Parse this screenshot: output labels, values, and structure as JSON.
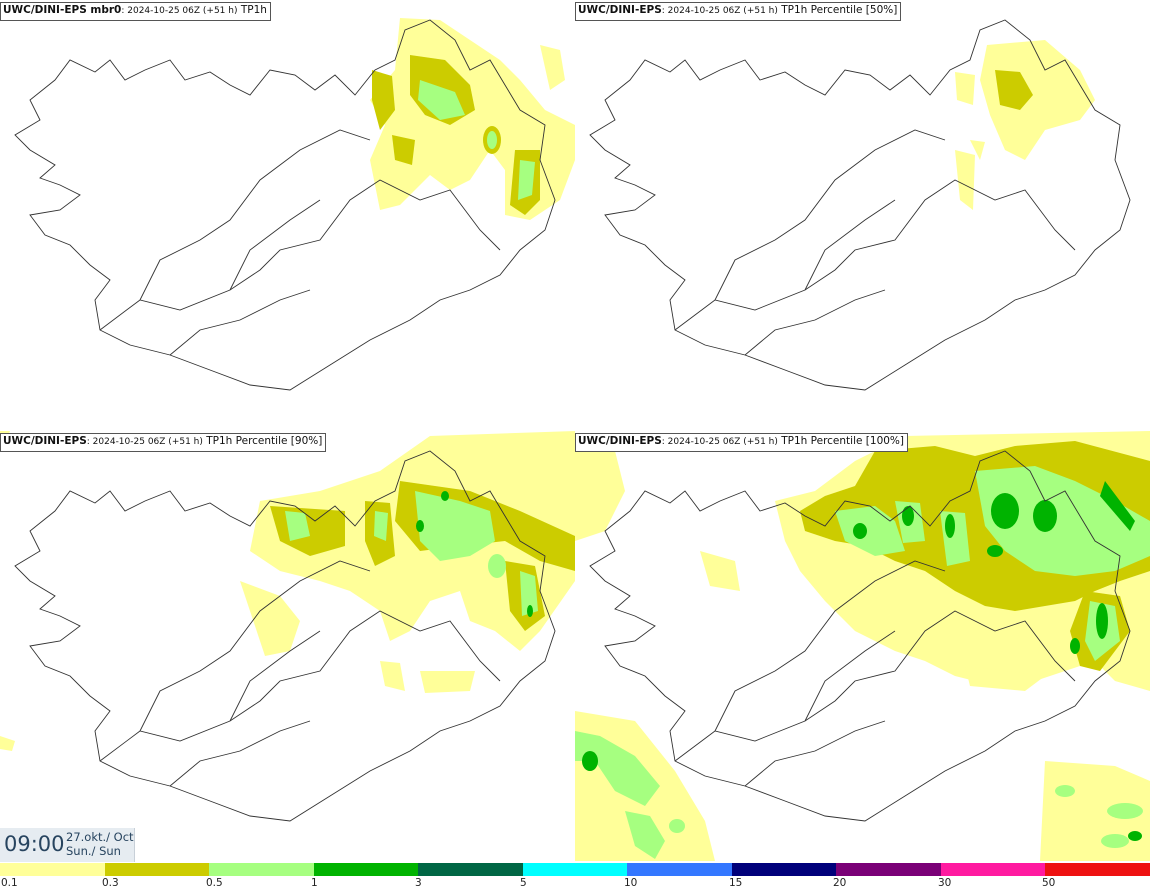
{
  "panels": [
    {
      "model": "UWC/DINI-EPS mbr0",
      "meta": ": 2024-10-25 06Z (+51 h)",
      "field": " TP1h"
    },
    {
      "model": "UWC/DINI-EPS",
      "meta": ": 2024-10-25 06Z (+51 h)",
      "field": " TP1h Percentile [50%]"
    },
    {
      "model": "UWC/DINI-EPS",
      "meta": ": 2024-10-25 06Z (+51 h)",
      "field": " TP1h Percentile [90%]"
    },
    {
      "model": "UWC/DINI-EPS",
      "meta": ": 2024-10-25 06Z (+51 h)",
      "field": " TP1h Percentile [100%]"
    }
  ],
  "timestamp": {
    "time": "09:00",
    "date_line1": "27.okt./ Oct",
    "date_line2": "Sun./ Sun"
  },
  "legend": {
    "ticks": [
      "0.1",
      "0.3",
      "0.5",
      "1",
      "3",
      "5",
      "10",
      "15",
      "20",
      "30",
      "50"
    ],
    "colors": [
      "#ffff99",
      "#cccc00",
      "#a6ff80",
      "#00b300",
      "#006644",
      "#00ffff",
      "#3377ff",
      "#00007a",
      "#7a0077",
      "#ff1aa0",
      "#ee1111"
    ]
  },
  "palette": {
    "light": "#ffff99",
    "olive": "#cccc00",
    "lightgreen": "#a6ff80",
    "green": "#00b300",
    "coast": "#333333"
  }
}
